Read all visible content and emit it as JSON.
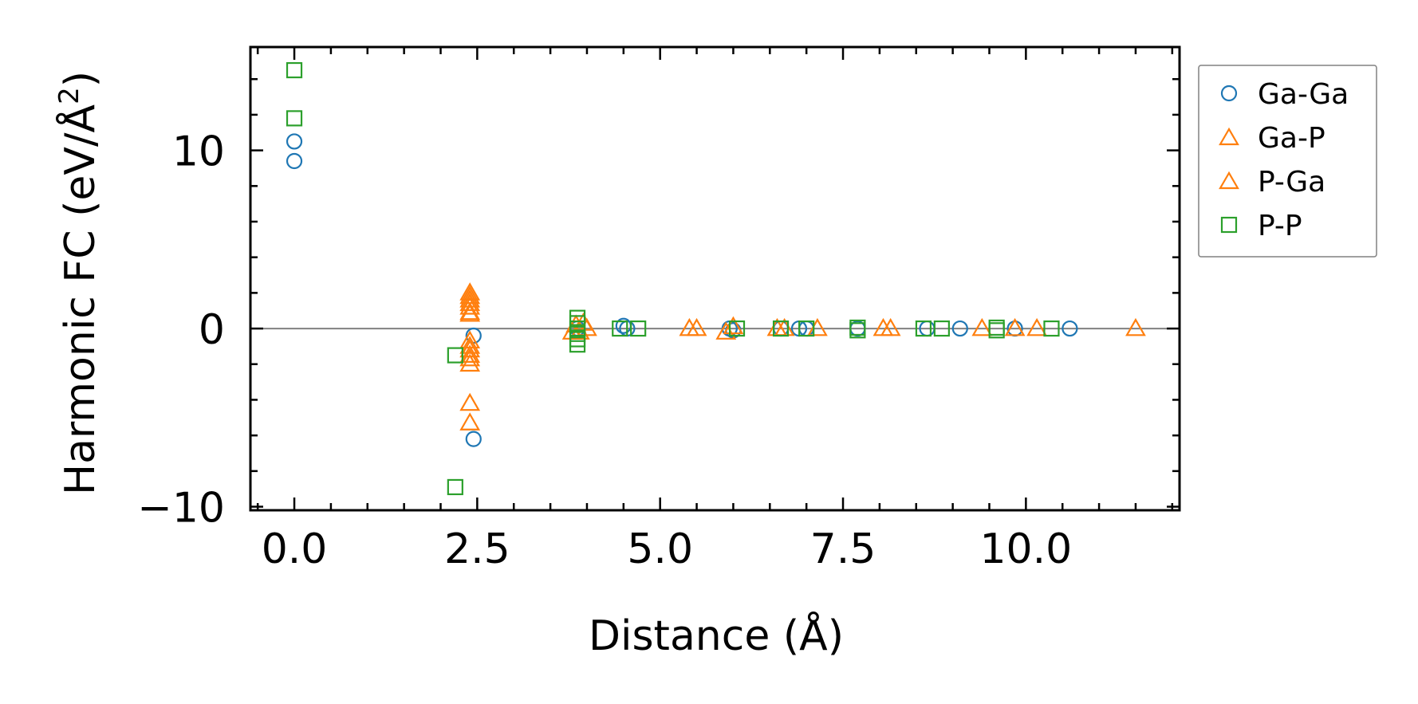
{
  "chart_data": {
    "type": "scatter",
    "title": "",
    "xlabel": "Distance (Å)",
    "ylabel_main": "Harmonic FC (eV/Å",
    "ylabel_sup": "2",
    "ylabel_close": ")",
    "xlim": [
      -0.6,
      12.1
    ],
    "ylim": [
      -10.2,
      15.8
    ],
    "xticks": [
      0.0,
      2.5,
      5.0,
      7.5,
      10.0
    ],
    "xtick_labels": [
      "0.0",
      "2.5",
      "5.0",
      "7.5",
      "10.0"
    ],
    "yticks": [
      -10,
      0,
      10
    ],
    "ytick_labels": [
      "−10",
      "0",
      "10"
    ],
    "zero_line": 0,
    "legend_position": "outside-right",
    "series": [
      {
        "name": "Ga-Ga",
        "marker": "circle",
        "color": "#1f77b4",
        "points": [
          [
            0.0,
            10.5
          ],
          [
            0.0,
            9.4
          ],
          [
            2.45,
            -0.4
          ],
          [
            2.45,
            -6.2
          ],
          [
            3.87,
            0.0
          ],
          [
            4.5,
            0.15
          ],
          [
            4.55,
            0.0
          ],
          [
            5.95,
            0.0
          ],
          [
            6.0,
            -0.1
          ],
          [
            6.65,
            0.0
          ],
          [
            6.9,
            0.0
          ],
          [
            7.0,
            0.0
          ],
          [
            7.7,
            0.0
          ],
          [
            8.65,
            0.0
          ],
          [
            9.1,
            0.0
          ],
          [
            9.85,
            0.0
          ],
          [
            10.6,
            0.0
          ]
        ]
      },
      {
        "name": "Ga-P",
        "marker": "triangle",
        "color": "#ff7f0e",
        "points": [
          [
            2.4,
            2.0
          ],
          [
            2.4,
            1.6
          ],
          [
            2.4,
            1.2
          ],
          [
            2.4,
            0.8
          ],
          [
            2.4,
            -0.7
          ],
          [
            2.4,
            -1.2
          ],
          [
            2.4,
            -1.7
          ],
          [
            2.4,
            -4.2
          ],
          [
            2.4,
            -5.3
          ],
          [
            3.85,
            0.2
          ],
          [
            3.9,
            -0.2
          ],
          [
            4.0,
            0.0
          ],
          [
            5.4,
            0.0
          ],
          [
            5.5,
            0.0
          ],
          [
            6.0,
            0.1
          ],
          [
            6.6,
            0.0
          ],
          [
            7.15,
            0.0
          ],
          [
            8.05,
            0.0
          ],
          [
            8.15,
            0.0
          ],
          [
            9.4,
            0.0
          ],
          [
            10.15,
            0.0
          ],
          [
            11.5,
            0.0
          ]
        ]
      },
      {
        "name": "P-Ga",
        "marker": "triangle",
        "color": "#ff7f0e",
        "points": [
          [
            2.4,
            1.8
          ],
          [
            2.4,
            1.4
          ],
          [
            2.4,
            0.9
          ],
          [
            2.4,
            -1.0
          ],
          [
            2.4,
            -1.5
          ],
          [
            2.4,
            -2.0
          ],
          [
            3.8,
            -0.2
          ],
          [
            3.95,
            0.3
          ],
          [
            5.9,
            -0.2
          ],
          [
            6.7,
            0.0
          ],
          [
            9.85,
            0.0
          ]
        ]
      },
      {
        "name": "P-P",
        "marker": "square",
        "color": "#2ca02c",
        "points": [
          [
            0.0,
            14.5
          ],
          [
            0.0,
            11.8
          ],
          [
            2.2,
            -1.5
          ],
          [
            2.2,
            -8.9
          ],
          [
            3.87,
            0.6
          ],
          [
            3.87,
            0.3
          ],
          [
            3.87,
            0.0
          ],
          [
            3.87,
            -0.3
          ],
          [
            3.87,
            -0.6
          ],
          [
            3.87,
            -0.9
          ],
          [
            4.45,
            0.0
          ],
          [
            4.7,
            0.0
          ],
          [
            6.05,
            0.0
          ],
          [
            6.65,
            0.0
          ],
          [
            7.0,
            0.0
          ],
          [
            7.7,
            0.05
          ],
          [
            7.7,
            -0.1
          ],
          [
            8.6,
            0.0
          ],
          [
            8.85,
            0.0
          ],
          [
            9.6,
            0.05
          ],
          [
            9.6,
            -0.1
          ],
          [
            10.35,
            0.0
          ]
        ]
      }
    ]
  },
  "legend": {
    "items": [
      {
        "label": "Ga-Ga",
        "marker": "circle",
        "color": "#1f77b4"
      },
      {
        "label": "Ga-P",
        "marker": "triangle",
        "color": "#ff7f0e"
      },
      {
        "label": "P-Ga",
        "marker": "triangle",
        "color": "#ff7f0e"
      },
      {
        "label": "P-P",
        "marker": "square",
        "color": "#2ca02c"
      }
    ]
  },
  "colors": {
    "axes": "#000000",
    "zero_line": "#808080",
    "legend_border": "#808080"
  }
}
